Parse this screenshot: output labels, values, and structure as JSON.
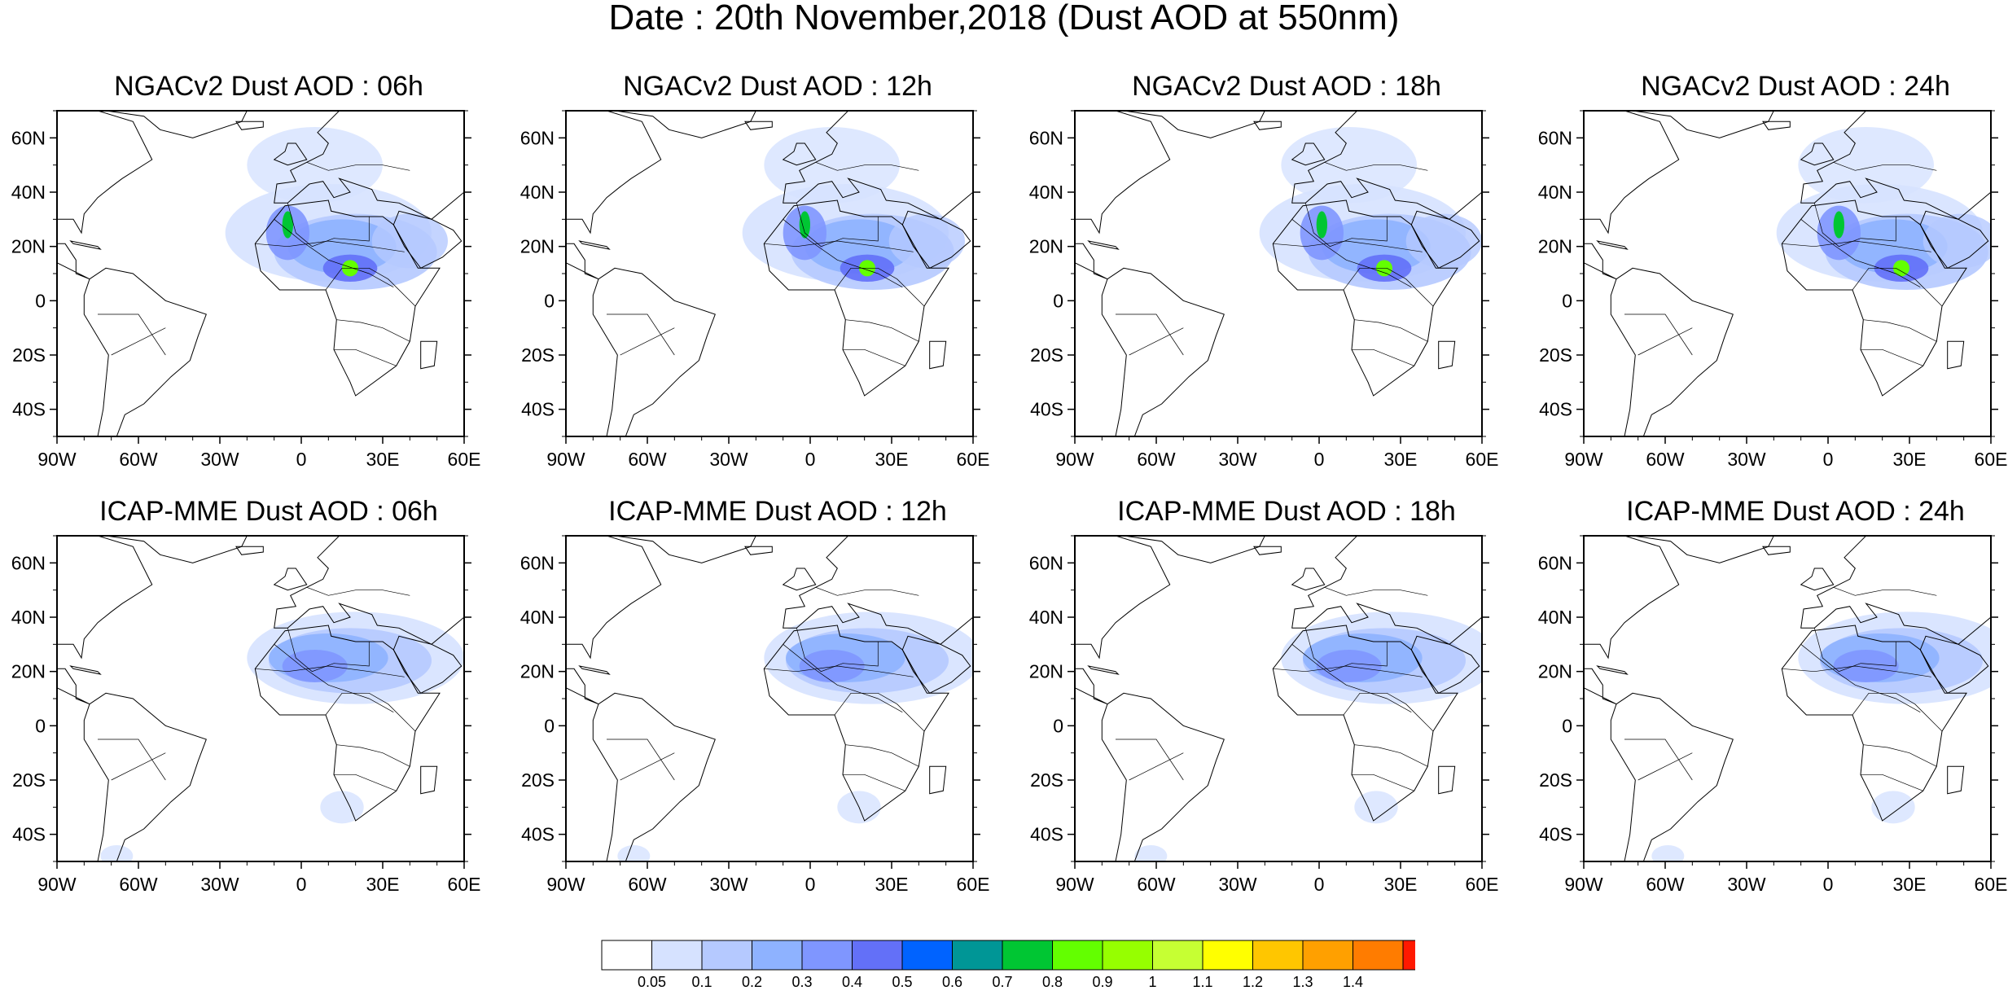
{
  "title": "Date : 20th November,2018 (Dust AOD at 550nm)",
  "axes": {
    "lon_ticks": [
      "90W",
      "60W",
      "30W",
      "0",
      "30E",
      "60E"
    ],
    "lat_ticks": [
      "60N",
      "40N",
      "20N",
      "0",
      "20S",
      "40S"
    ]
  },
  "panels": [
    {
      "title": "NGACv2 Dust AOD : 06h"
    },
    {
      "title": "NGACv2 Dust AOD : 12h"
    },
    {
      "title": "NGACv2 Dust AOD : 18h"
    },
    {
      "title": "NGACv2 Dust AOD : 24h"
    },
    {
      "title": "ICAP-MME Dust AOD : 06h"
    },
    {
      "title": "ICAP-MME Dust AOD : 12h"
    },
    {
      "title": "ICAP-MME Dust AOD : 18h"
    },
    {
      "title": "ICAP-MME Dust AOD : 24h"
    }
  ],
  "colorbar": {
    "labels": [
      "0.05",
      "0.1",
      "0.2",
      "0.3",
      "0.4",
      "0.5",
      "0.6",
      "0.7",
      "0.8",
      "0.9",
      "1",
      "1.1",
      "1.2",
      "1.3",
      "1.4"
    ],
    "colors": [
      "#ffffff",
      "#d6e2ff",
      "#b5c9ff",
      "#8eb2ff",
      "#7f96ff",
      "#6370f8",
      "#0063ff",
      "#009696",
      "#00c633",
      "#63ff00",
      "#96ff00",
      "#c6ff33",
      "#ffff00",
      "#ffc600",
      "#ffa000",
      "#ff7c00",
      "#ff1900"
    ]
  }
}
